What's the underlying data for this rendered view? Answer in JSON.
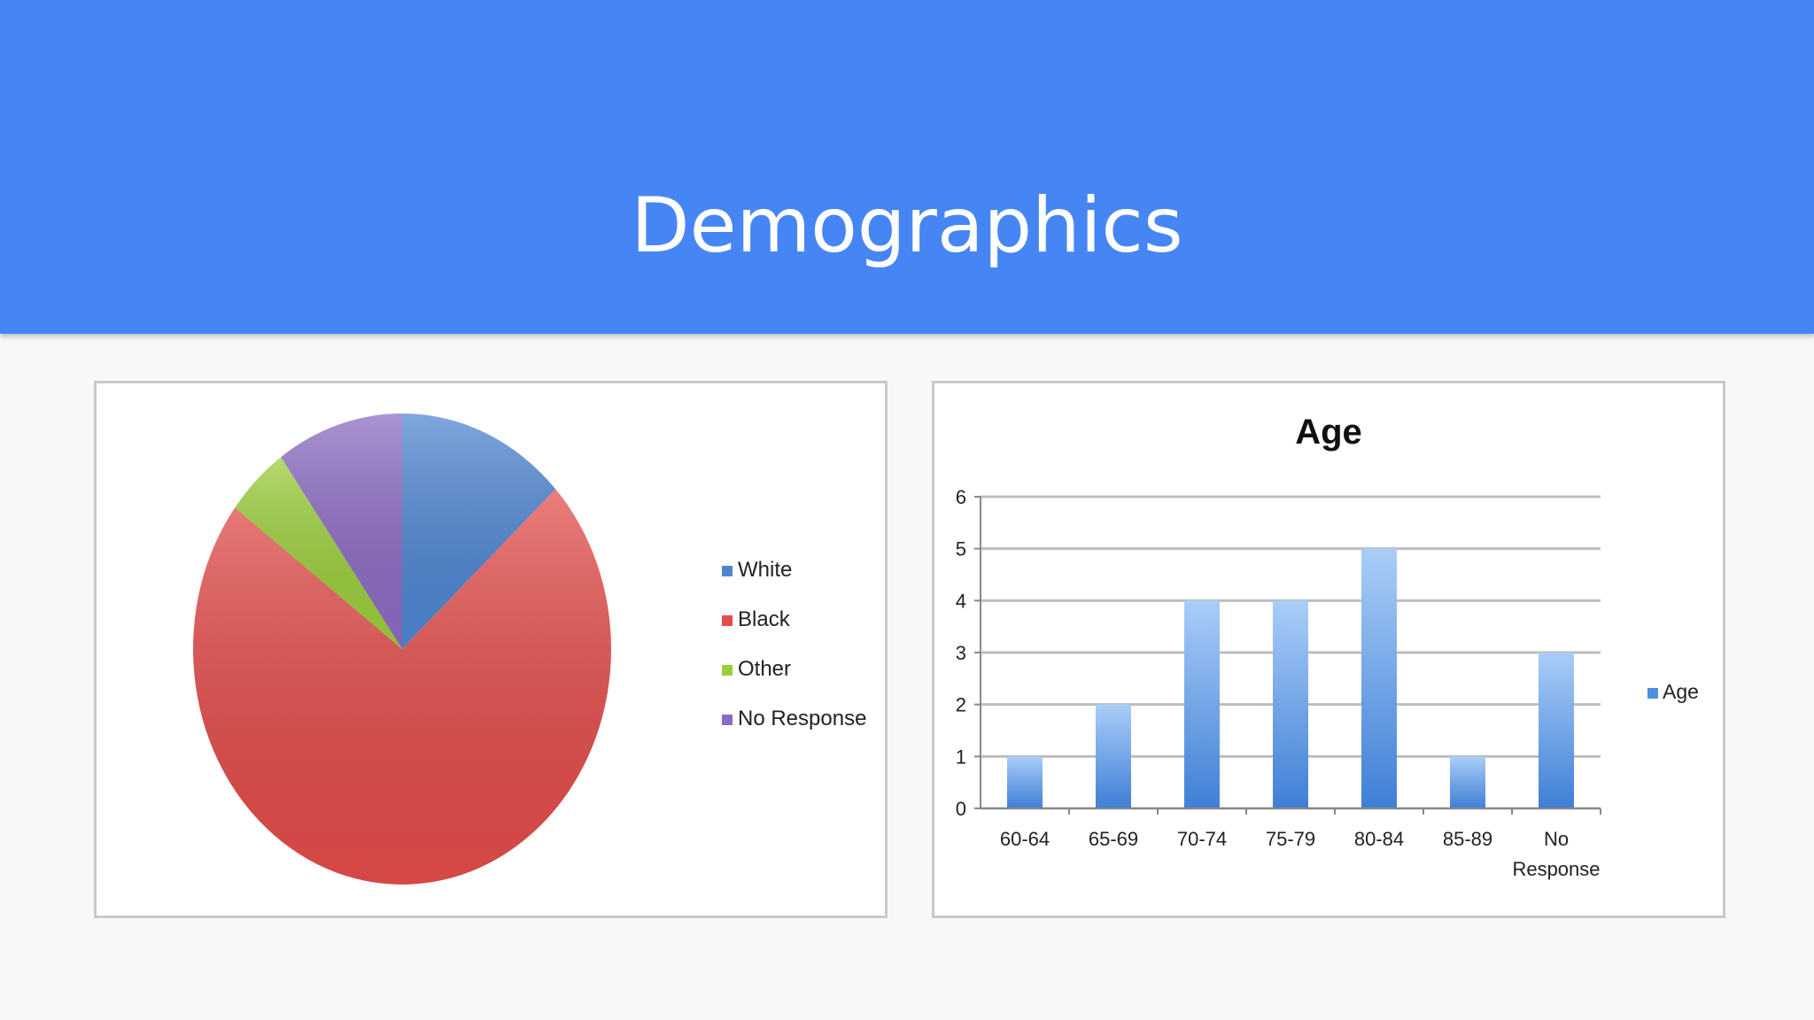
{
  "slide": {
    "title": "Demographics"
  },
  "chart_data": [
    {
      "type": "pie",
      "title": "",
      "legend_position": "right",
      "categories": [
        "White",
        "Black",
        "Other",
        "No Response"
      ],
      "values": [
        4,
        22,
        1.5,
        3
      ],
      "colors": [
        "#4f86d2",
        "#e24c4a",
        "#9acd3a",
        "#8c6bc2"
      ],
      "start_angle_deg": 0,
      "ordering": [
        0,
        1,
        2,
        3
      ]
    },
    {
      "type": "bar",
      "title": "Age",
      "legend_position": "right",
      "categories": [
        "60-64",
        "65-69",
        "70-74",
        "75-79",
        "80-84",
        "85-89",
        "No Response"
      ],
      "series": [
        {
          "name": "Age",
          "values": [
            1,
            2,
            4,
            4,
            5,
            1,
            3
          ],
          "color": "#4f8fe0"
        }
      ],
      "ylim": [
        0,
        6
      ],
      "yticks": [
        0,
        1,
        2,
        3,
        4,
        5,
        6
      ],
      "grid": true
    }
  ]
}
